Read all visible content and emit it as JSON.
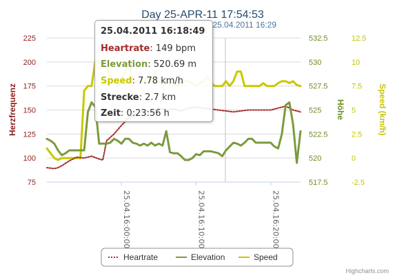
{
  "chart_data": {
    "type": "line",
    "title": "Day 25-APR-11 17:54:53",
    "subtitle": "25.04.2011 16:29",
    "credits": "Highcharts.com",
    "x_ticks": [
      "25.04.16:00:00",
      "25.04.16:10:00",
      "25.04.16:20:00"
    ],
    "x_tick_values": [
      10,
      20,
      30
    ],
    "x_range": [
      0,
      34
    ],
    "crosshair_x": 23.93,
    "axes": {
      "heartrate": {
        "label": "Herzfrequenz",
        "ticks": [
          "225",
          "200",
          "175",
          "150",
          "125",
          "100",
          "75"
        ],
        "range": [
          75,
          225
        ],
        "color": "#8b1c1c"
      },
      "elevation": {
        "label": "Höhe",
        "ticks": [
          "532.5",
          "530",
          "527.5",
          "525",
          "522.5",
          "520",
          "517.5"
        ],
        "range": [
          517.5,
          532.5
        ],
        "color": "#6b8e23"
      },
      "speed": {
        "label": "Speed (km/h)",
        "ticks": [
          "12.5",
          "10",
          "7.5",
          "5",
          "2.5",
          "0",
          "-2.5"
        ],
        "range": [
          -2.5,
          12.5
        ],
        "color": "#c6c600"
      }
    },
    "series": [
      {
        "name": "Heartrate",
        "axis": "heartrate",
        "color": "#a52a2a",
        "x": [
          0,
          1,
          1.5,
          2,
          3,
          4,
          5,
          6,
          7,
          7.5,
          8,
          9,
          10,
          11,
          12,
          12.5,
          13,
          14,
          15,
          16,
          17,
          18,
          19,
          20,
          21,
          22,
          23,
          24,
          25,
          26,
          27,
          28,
          29,
          30,
          31,
          32,
          33,
          34
        ],
        "y": [
          90,
          89,
          90,
          92,
          97,
          101,
          100,
          102,
          99,
          98,
          118,
          125,
          134,
          142,
          146,
          148,
          150,
          148,
          152,
          150,
          151,
          149,
          152,
          153,
          152,
          151,
          150,
          149,
          148,
          149,
          150,
          150,
          150,
          150,
          152,
          154,
          150,
          148
        ]
      },
      {
        "name": "Elevation",
        "axis": "elevation",
        "color": "#7b9a3c",
        "x": [
          0,
          0.5,
          1,
          1.5,
          2,
          2.5,
          3,
          3.5,
          4,
          4.5,
          5,
          5.5,
          6,
          6.5,
          7,
          7.5,
          8,
          8.5,
          9,
          9.5,
          10,
          10.5,
          11,
          11.5,
          12,
          12.5,
          13,
          13.5,
          14,
          14.5,
          15,
          15.5,
          16,
          16.5,
          17,
          17.5,
          18,
          18.5,
          19,
          19.5,
          20,
          20.5,
          21,
          21.5,
          22,
          22.5,
          23,
          23.5,
          24,
          24.5,
          25,
          25.5,
          26,
          26.5,
          27,
          27.5,
          28,
          28.5,
          29,
          29.5,
          30,
          30.5,
          31,
          31.5,
          32,
          32.5,
          33,
          33.5,
          34
        ],
        "y": [
          522,
          521.8,
          521.5,
          520.8,
          520.3,
          520.5,
          520.8,
          520.8,
          520.8,
          520.8,
          520.8,
          524.8,
          525.8,
          525.3,
          521.5,
          521.5,
          521.5,
          521.6,
          522,
          521.8,
          521.5,
          522,
          522,
          521.6,
          521.5,
          521.3,
          521.5,
          521.3,
          521.6,
          521.3,
          521.5,
          521.3,
          522.8,
          520.6,
          520.5,
          520.5,
          520.2,
          519.8,
          519.8,
          520,
          520.4,
          520.3,
          520.7,
          520.7,
          520.7,
          520.6,
          520.5,
          520.2,
          520.8,
          521.2,
          521.6,
          521.5,
          521.3,
          521.6,
          522,
          522,
          521.6,
          521.6,
          521.6,
          521.6,
          521.6,
          521.2,
          521,
          522.5,
          525.5,
          525.8,
          523.5,
          519.5,
          522.8
        ]
      },
      {
        "name": "Speed",
        "axis": "speed",
        "color": "#c8c800",
        "x": [
          0,
          0.5,
          1,
          1.5,
          2,
          2.5,
          3,
          3.5,
          4,
          4.5,
          5,
          5.5,
          6,
          6.5,
          7,
          7.5,
          8,
          8.5,
          9,
          9.5,
          10,
          10.5,
          11,
          11.5,
          12,
          12.5,
          13,
          13.5,
          14,
          14.5,
          15,
          15.5,
          16,
          16.5,
          17,
          17.5,
          18,
          18.5,
          19,
          19.5,
          20,
          20.5,
          21,
          21.5,
          22,
          22.5,
          23,
          23.5,
          24,
          24.5,
          25,
          25.5,
          26,
          26.5,
          27,
          27.5,
          28,
          28.5,
          29,
          29.5,
          30,
          30.5,
          31,
          31.5,
          32,
          32.5,
          33,
          33.5,
          34
        ],
        "y": [
          1,
          0.5,
          0,
          -0.2,
          0,
          0,
          0,
          0,
          0,
          0,
          7,
          7.5,
          7.5,
          10.2,
          10,
          9.5,
          9.5,
          8.5,
          8,
          7.5,
          8,
          9,
          10,
          8,
          8,
          8,
          7.8,
          8.5,
          8,
          9,
          8,
          7.5,
          7.8,
          7.8,
          8,
          7.5,
          7.8,
          8,
          8,
          7.7,
          7.5,
          7.8,
          8,
          8.5,
          7.8,
          7.5,
          7.5,
          7.5,
          8,
          7.5,
          8,
          9,
          9,
          7.5,
          7.5,
          7.5,
          7.5,
          7.5,
          7.8,
          7.5,
          7.5,
          7.5,
          7.8,
          8,
          8,
          7.8,
          8,
          7.6,
          7.5
        ]
      }
    ],
    "tooltip": {
      "date": "25.04.2011 16:18:49",
      "rows": [
        {
          "label": "Heartrate",
          "value": "149 bpm",
          "color": "#a52a2a"
        },
        {
          "label": "Elevation",
          "value": "520.69 m",
          "color": "#7b9a3c"
        },
        {
          "label": "Speed",
          "value": "7.78 km/h",
          "color": "#c8c800"
        },
        {
          "label": "Strecke",
          "value": "2.7 km",
          "color": "#000000"
        },
        {
          "label": "Zeit",
          "value": "0:23:56 h",
          "color": "#000000"
        }
      ]
    },
    "legend_position": "bottom-center"
  }
}
